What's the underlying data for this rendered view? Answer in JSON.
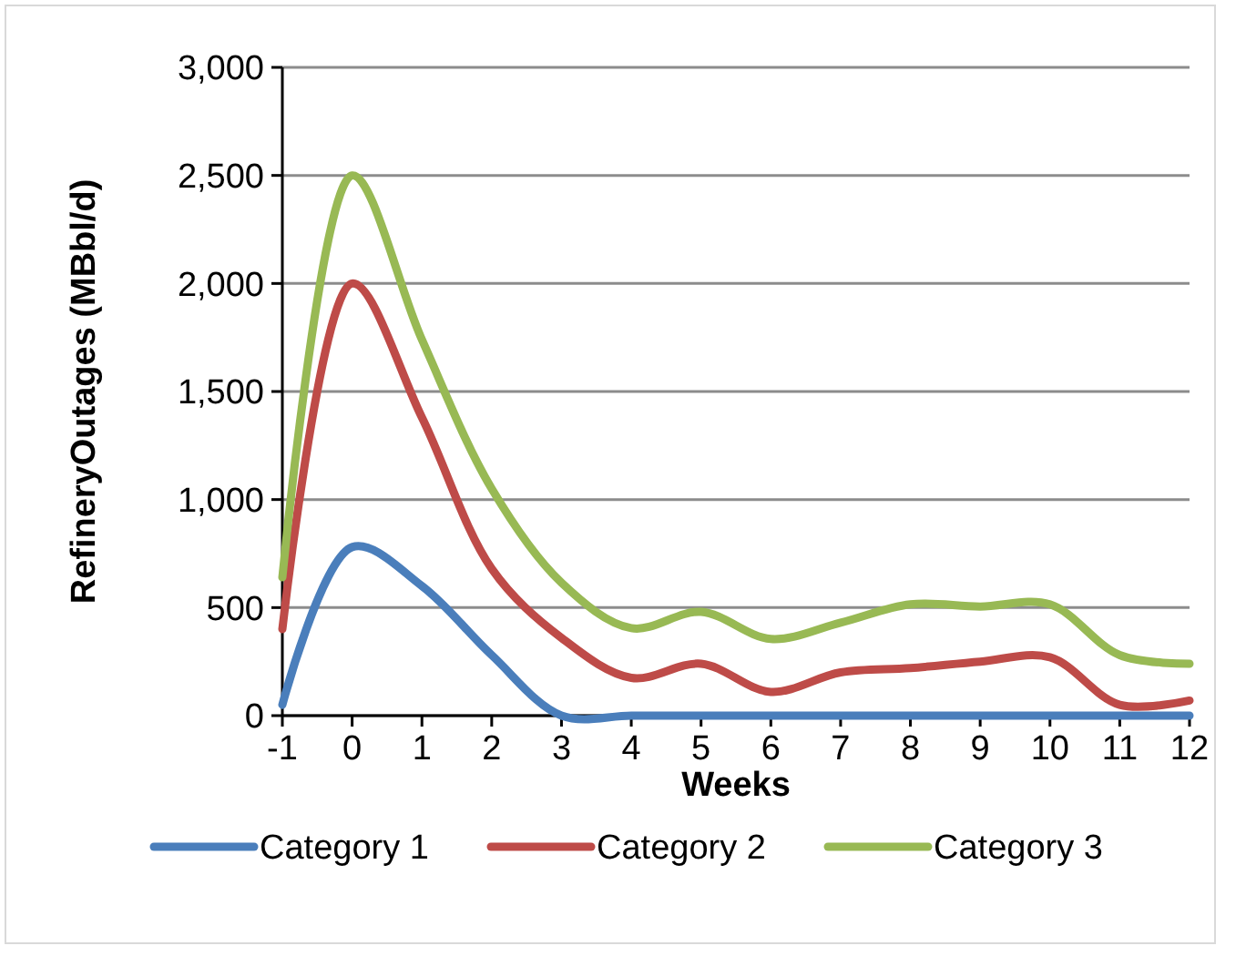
{
  "chart_data": {
    "type": "line",
    "xlabel": "Weeks",
    "ylabel": "RefineryOutages (MBbl/d)",
    "x": [
      -1,
      0,
      1,
      2,
      3,
      4,
      5,
      6,
      7,
      8,
      9,
      10,
      11,
      12
    ],
    "xlim": [
      -1,
      12
    ],
    "xticks": [
      -1,
      0,
      1,
      2,
      3,
      4,
      5,
      6,
      7,
      8,
      9,
      10,
      11,
      12
    ],
    "ylim": [
      0,
      3000
    ],
    "yticks": [
      {
        "value": 0,
        "label": "0"
      },
      {
        "value": 500,
        "label": "500"
      },
      {
        "value": 1000,
        "label": "1,000"
      },
      {
        "value": 1500,
        "label": "1,500"
      },
      {
        "value": 2000,
        "label": "2,000"
      },
      {
        "value": 2500,
        "label": "2,500"
      },
      {
        "value": 3000,
        "label": "3,000"
      }
    ],
    "grid": "y",
    "legend": "bottom",
    "marker": "none",
    "line_style": "solid",
    "series": [
      {
        "name": "Category 1",
        "color": "#4a7ebb",
        "values": [
          50,
          780,
          600,
          280,
          0,
          0,
          0,
          0,
          0,
          0,
          0,
          0,
          0,
          0
        ]
      },
      {
        "name": "Category 2",
        "color": "#be4b48",
        "values": [
          400,
          2000,
          1380,
          680,
          360,
          175,
          240,
          110,
          200,
          220,
          250,
          270,
          50,
          70
        ]
      },
      {
        "name": "Category 3",
        "color": "#98b954",
        "values": [
          640,
          2500,
          1740,
          1050,
          615,
          405,
          480,
          355,
          430,
          515,
          505,
          515,
          280,
          240
        ]
      }
    ]
  }
}
